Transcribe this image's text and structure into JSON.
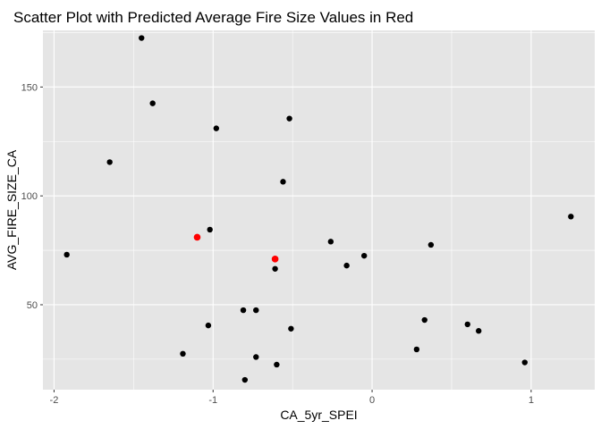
{
  "chart_data": {
    "type": "scatter",
    "title": "Scatter Plot with Predicted Average Fire Size Values in Red",
    "xlabel": "CA_5yr_SPEI",
    "ylabel": "AVG_FIRE_SIZE_CA",
    "xlim": [
      -2.07,
      1.4
    ],
    "ylim": [
      11,
      176
    ],
    "x_ticks": [
      -2,
      -1,
      0,
      1
    ],
    "x_tick_labels": [
      "-2",
      "-1",
      "0",
      "1"
    ],
    "y_ticks": [
      50,
      100,
      150
    ],
    "y_tick_labels": [
      "50",
      "100",
      "150"
    ],
    "grid": true,
    "panel_background": "#e5e5e5",
    "grid_color": "#ffffff",
    "series": [
      {
        "color": "#000000",
        "points": [
          {
            "x": -1.45,
            "y": 172.5
          },
          {
            "x": -1.38,
            "y": 142.5
          },
          {
            "x": -1.65,
            "y": 115.5
          },
          {
            "x": -0.98,
            "y": 131
          },
          {
            "x": -0.52,
            "y": 135.5
          },
          {
            "x": -0.56,
            "y": 106.5
          },
          {
            "x": -1.02,
            "y": 84.5
          },
          {
            "x": -1.92,
            "y": 73
          },
          {
            "x": -0.26,
            "y": 79
          },
          {
            "x": 0.37,
            "y": 77.5
          },
          {
            "x": 1.25,
            "y": 90.5
          },
          {
            "x": -0.05,
            "y": 72.5
          },
          {
            "x": -0.16,
            "y": 68
          },
          {
            "x": -0.61,
            "y": 66.5
          },
          {
            "x": -0.81,
            "y": 47.5
          },
          {
            "x": -0.73,
            "y": 47.5
          },
          {
            "x": -1.03,
            "y": 40.5
          },
          {
            "x": -0.51,
            "y": 39
          },
          {
            "x": 0.33,
            "y": 43
          },
          {
            "x": 0.6,
            "y": 41
          },
          {
            "x": 0.67,
            "y": 38
          },
          {
            "x": 0.28,
            "y": 29.5
          },
          {
            "x": -1.19,
            "y": 27.5
          },
          {
            "x": -0.73,
            "y": 26
          },
          {
            "x": -0.6,
            "y": 22.5
          },
          {
            "x": -0.8,
            "y": 15.5
          },
          {
            "x": 0.96,
            "y": 23.5
          }
        ]
      },
      {
        "color": "#ff0000",
        "points": [
          {
            "x": -1.1,
            "y": 81
          },
          {
            "x": -0.61,
            "y": 71
          }
        ]
      }
    ]
  }
}
